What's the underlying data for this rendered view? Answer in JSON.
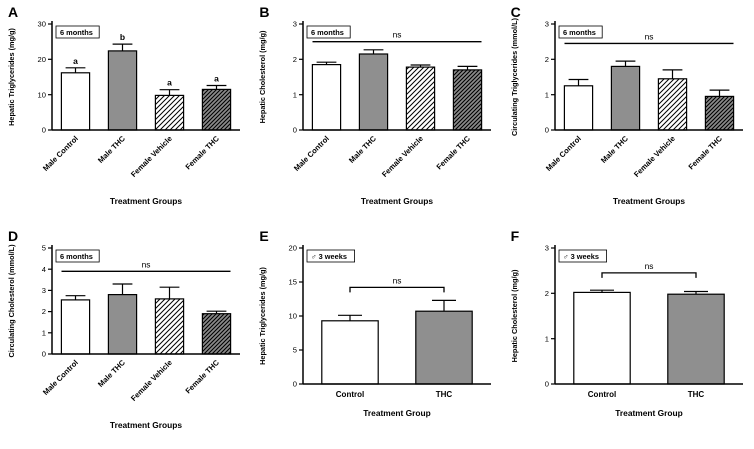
{
  "style": {
    "background": "#ffffff",
    "axis_color": "#000000",
    "bar_gray": "#8f8f8f",
    "hatch_dark_bg": "#8a8a8a"
  },
  "chart_data": [
    {
      "panel": "A",
      "type": "bar",
      "inset_label": "6 months",
      "ylabel": "Hepatic Triglycerides (mg/g)",
      "xlabel": "Treatment Groups",
      "categories": [
        "Male Control",
        "Male THC",
        "Female Vehicle",
        "Female THC"
      ],
      "values": [
        16.2,
        22.4,
        9.8,
        11.5
      ],
      "errors": [
        1.4,
        1.9,
        1.6,
        1.1
      ],
      "bar_styles": [
        "white",
        "solid-gray",
        "hatch-light",
        "hatch-dark"
      ],
      "bar_letters": [
        "a",
        "b",
        "a",
        "a"
      ],
      "ylim": [
        0,
        30
      ],
      "yticks": [
        0,
        10,
        20,
        30
      ],
      "rotated_xlabels": true,
      "annotation": {
        "type": "none",
        "y": 0,
        "label": ""
      }
    },
    {
      "panel": "B",
      "type": "bar",
      "inset_label": "6 months",
      "ylabel": "Hepatic Cholesterol (mg/g)",
      "xlabel": "Treatment Groups",
      "categories": [
        "Male Control",
        "Male THC",
        "Female Vehicle",
        "Female THC"
      ],
      "values": [
        1.85,
        2.15,
        1.78,
        1.7
      ],
      "errors": [
        0.07,
        0.12,
        0.06,
        0.1
      ],
      "bar_styles": [
        "white",
        "solid-gray",
        "hatch-light",
        "hatch-dark"
      ],
      "ylim": [
        0,
        3
      ],
      "yticks": [
        0,
        1,
        2,
        3
      ],
      "rotated_xlabels": true,
      "annotation": {
        "type": "line",
        "y": 2.5,
        "label": "ns"
      }
    },
    {
      "panel": "C",
      "type": "bar",
      "inset_label": "6 months",
      "ylabel": "Circulating Triglycerides (mmol/L)",
      "xlabel": "Treatment Groups",
      "categories": [
        "Male Control",
        "Male THC",
        "Female Vehicle",
        "Female THC"
      ],
      "values": [
        1.25,
        1.8,
        1.45,
        0.95
      ],
      "errors": [
        0.18,
        0.15,
        0.25,
        0.18
      ],
      "bar_styles": [
        "white",
        "solid-gray",
        "hatch-light",
        "hatch-dark"
      ],
      "ylim": [
        0,
        3
      ],
      "yticks": [
        0,
        1,
        2,
        3
      ],
      "rotated_xlabels": true,
      "annotation": {
        "type": "line",
        "y": 2.45,
        "label": "ns"
      }
    },
    {
      "panel": "D",
      "type": "bar",
      "inset_label": "6 months",
      "ylabel": "Circulating Cholesterol (mmol/L)",
      "xlabel": "Treatment Groups",
      "categories": [
        "Male Control",
        "Male THC",
        "Female Vehicle",
        "Female THC"
      ],
      "values": [
        2.55,
        2.8,
        2.6,
        1.9
      ],
      "errors": [
        0.2,
        0.5,
        0.55,
        0.12
      ],
      "bar_styles": [
        "white",
        "solid-gray",
        "hatch-light",
        "hatch-dark"
      ],
      "ylim": [
        0,
        5
      ],
      "yticks": [
        0,
        1,
        2,
        3,
        4,
        5
      ],
      "rotated_xlabels": true,
      "annotation": {
        "type": "line",
        "y": 3.9,
        "label": "ns"
      }
    },
    {
      "panel": "E",
      "type": "bar",
      "inset_label": "♂ 3 weeks",
      "ylabel": "Hepatic Triglycerides (mg/g)",
      "xlabel": "Treatment Group",
      "categories": [
        "Control",
        "THC"
      ],
      "values": [
        9.3,
        10.7
      ],
      "errors": [
        0.8,
        1.6
      ],
      "bar_styles": [
        "white",
        "solid-gray"
      ],
      "ylim": [
        0,
        20
      ],
      "yticks": [
        0,
        5,
        10,
        15,
        20
      ],
      "rotated_xlabels": false,
      "annotation": {
        "type": "bracket",
        "y": 14.2,
        "label": "ns"
      }
    },
    {
      "panel": "F",
      "type": "bar",
      "inset_label": "♂ 3 weeks",
      "ylabel": "Hepatic Cholesterol (mg/g)",
      "xlabel": "Treatment Group",
      "categories": [
        "Control",
        "THC"
      ],
      "values": [
        2.02,
        1.98
      ],
      "errors": [
        0.05,
        0.06
      ],
      "bar_styles": [
        "white",
        "solid-gray"
      ],
      "ylim": [
        0,
        3
      ],
      "yticks": [
        0,
        1,
        2,
        3
      ],
      "rotated_xlabels": false,
      "annotation": {
        "type": "bracket",
        "y": 2.45,
        "label": "ns"
      }
    }
  ]
}
